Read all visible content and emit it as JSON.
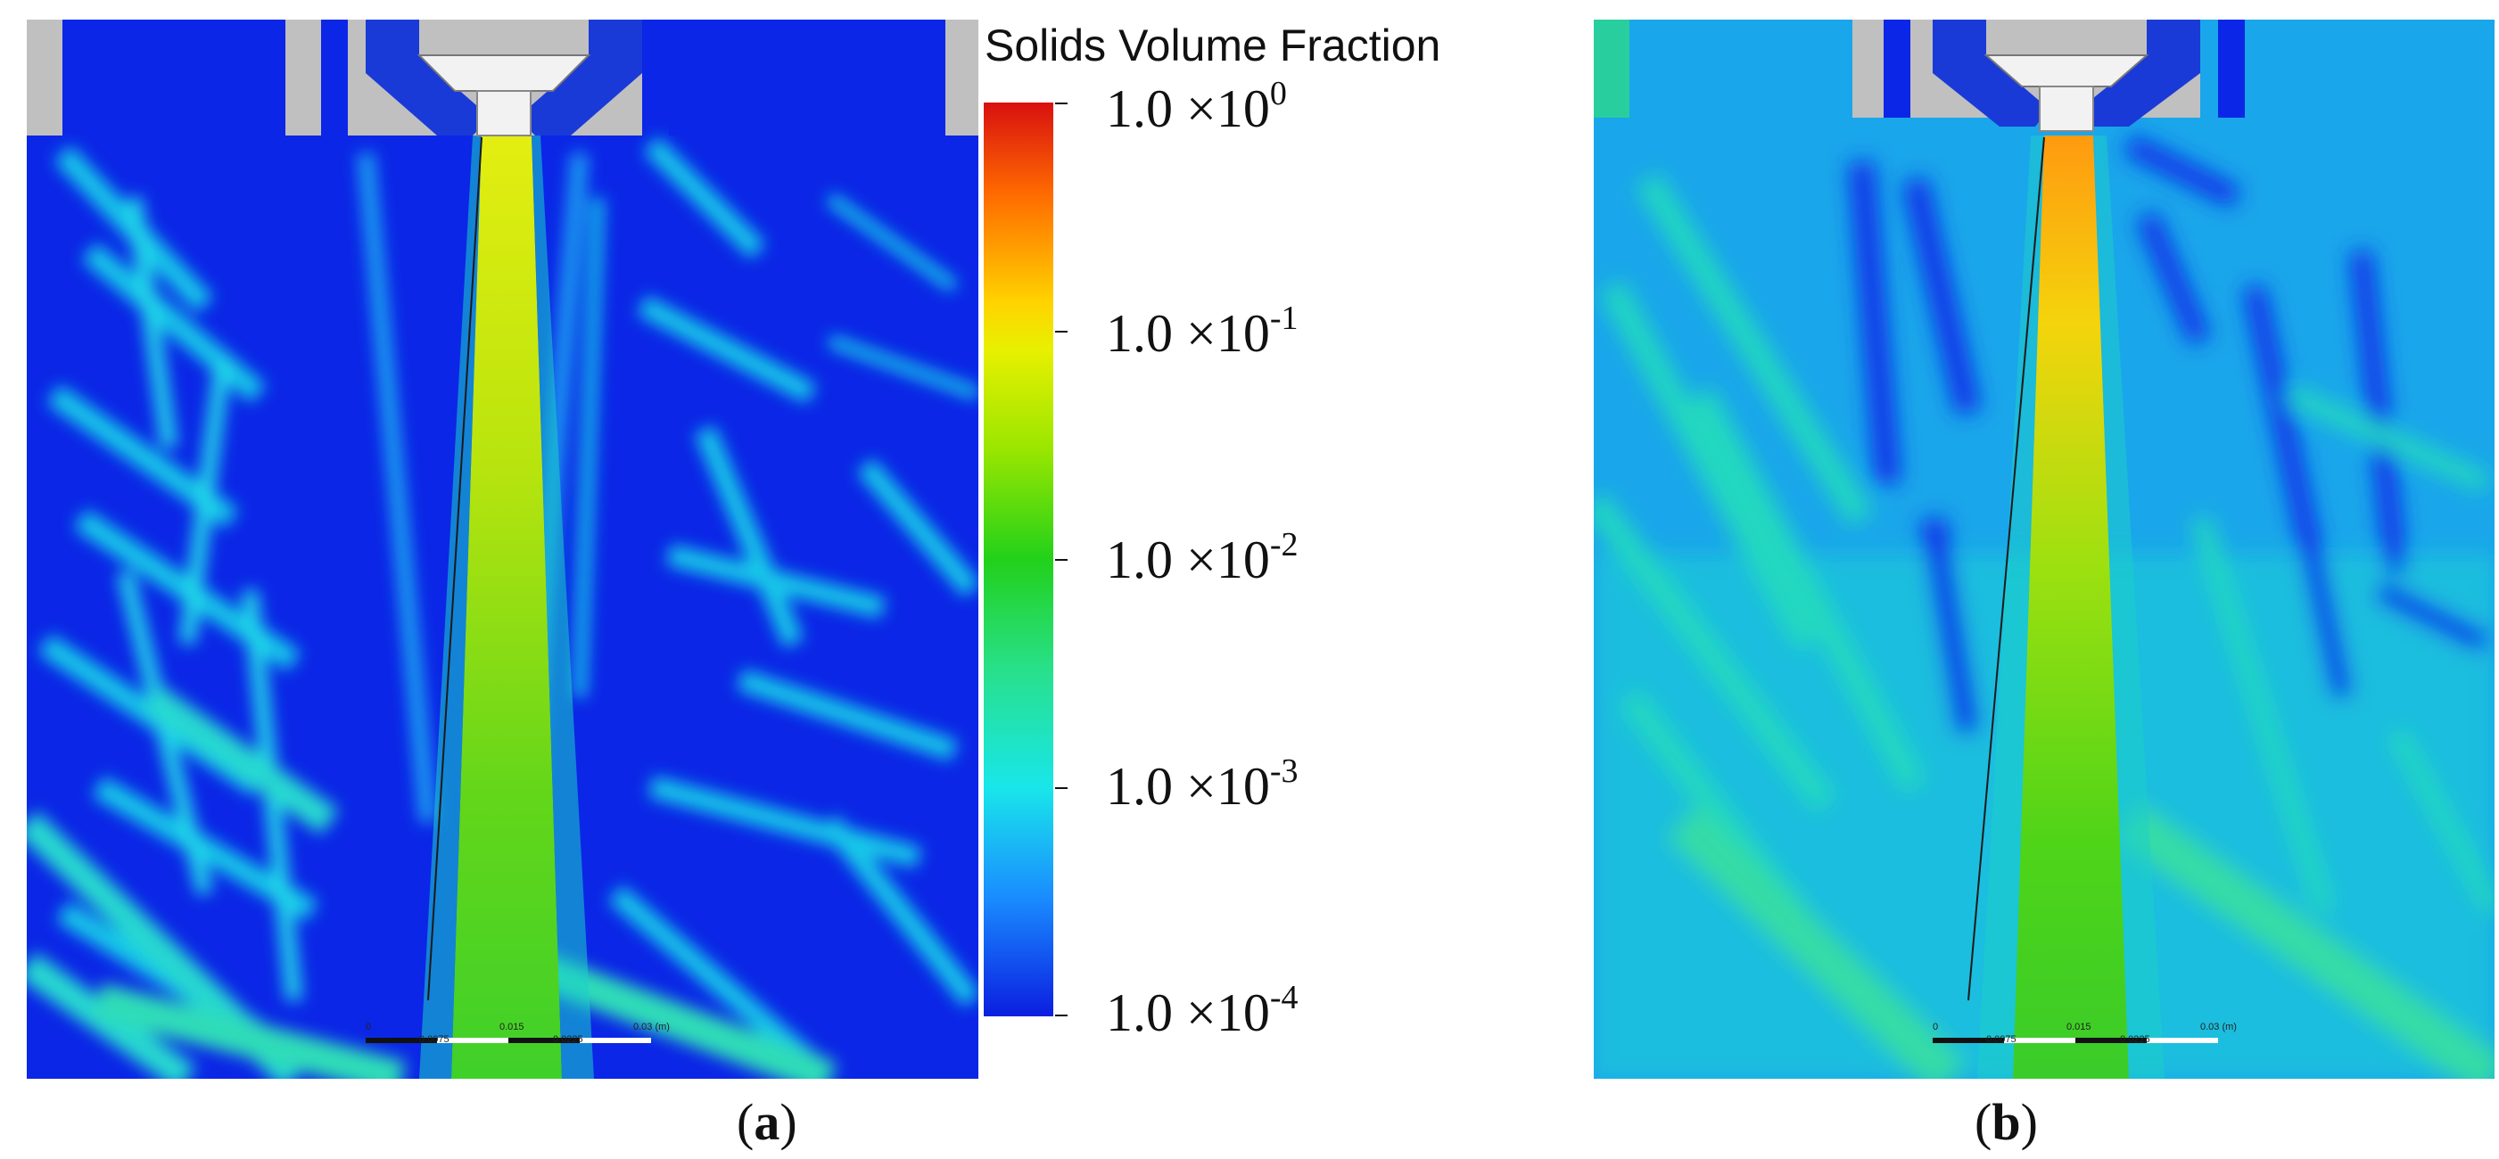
{
  "legend": {
    "title": "Solids Volume Fraction",
    "ticks": [
      {
        "mantissa": "1.0 ×10",
        "exp": "0"
      },
      {
        "mantissa": "1.0 ×10",
        "exp": "-1"
      },
      {
        "mantissa": "1.0 ×10",
        "exp": "-2"
      },
      {
        "mantissa": "1.0 ×10",
        "exp": "-3"
      },
      {
        "mantissa": "1.0 ×10",
        "exp": "-4"
      }
    ],
    "colors": [
      "#d81010",
      "#ffd400",
      "#22d11a",
      "#19e6ea",
      "#0b1ee0"
    ]
  },
  "panels": [
    {
      "caption_letter": "a",
      "scale_top": [
        "0",
        "0.015",
        "0.03 (m)"
      ],
      "scale_bottom": [
        "0.0075",
        "0.0225"
      ]
    },
    {
      "caption_letter": "b",
      "scale_top": [
        "0",
        "0.015",
        "0.03 (m)"
      ],
      "scale_bottom": [
        "0.0075",
        "0.0225"
      ]
    }
  ],
  "caption_open": "(",
  "caption_close": ")"
}
